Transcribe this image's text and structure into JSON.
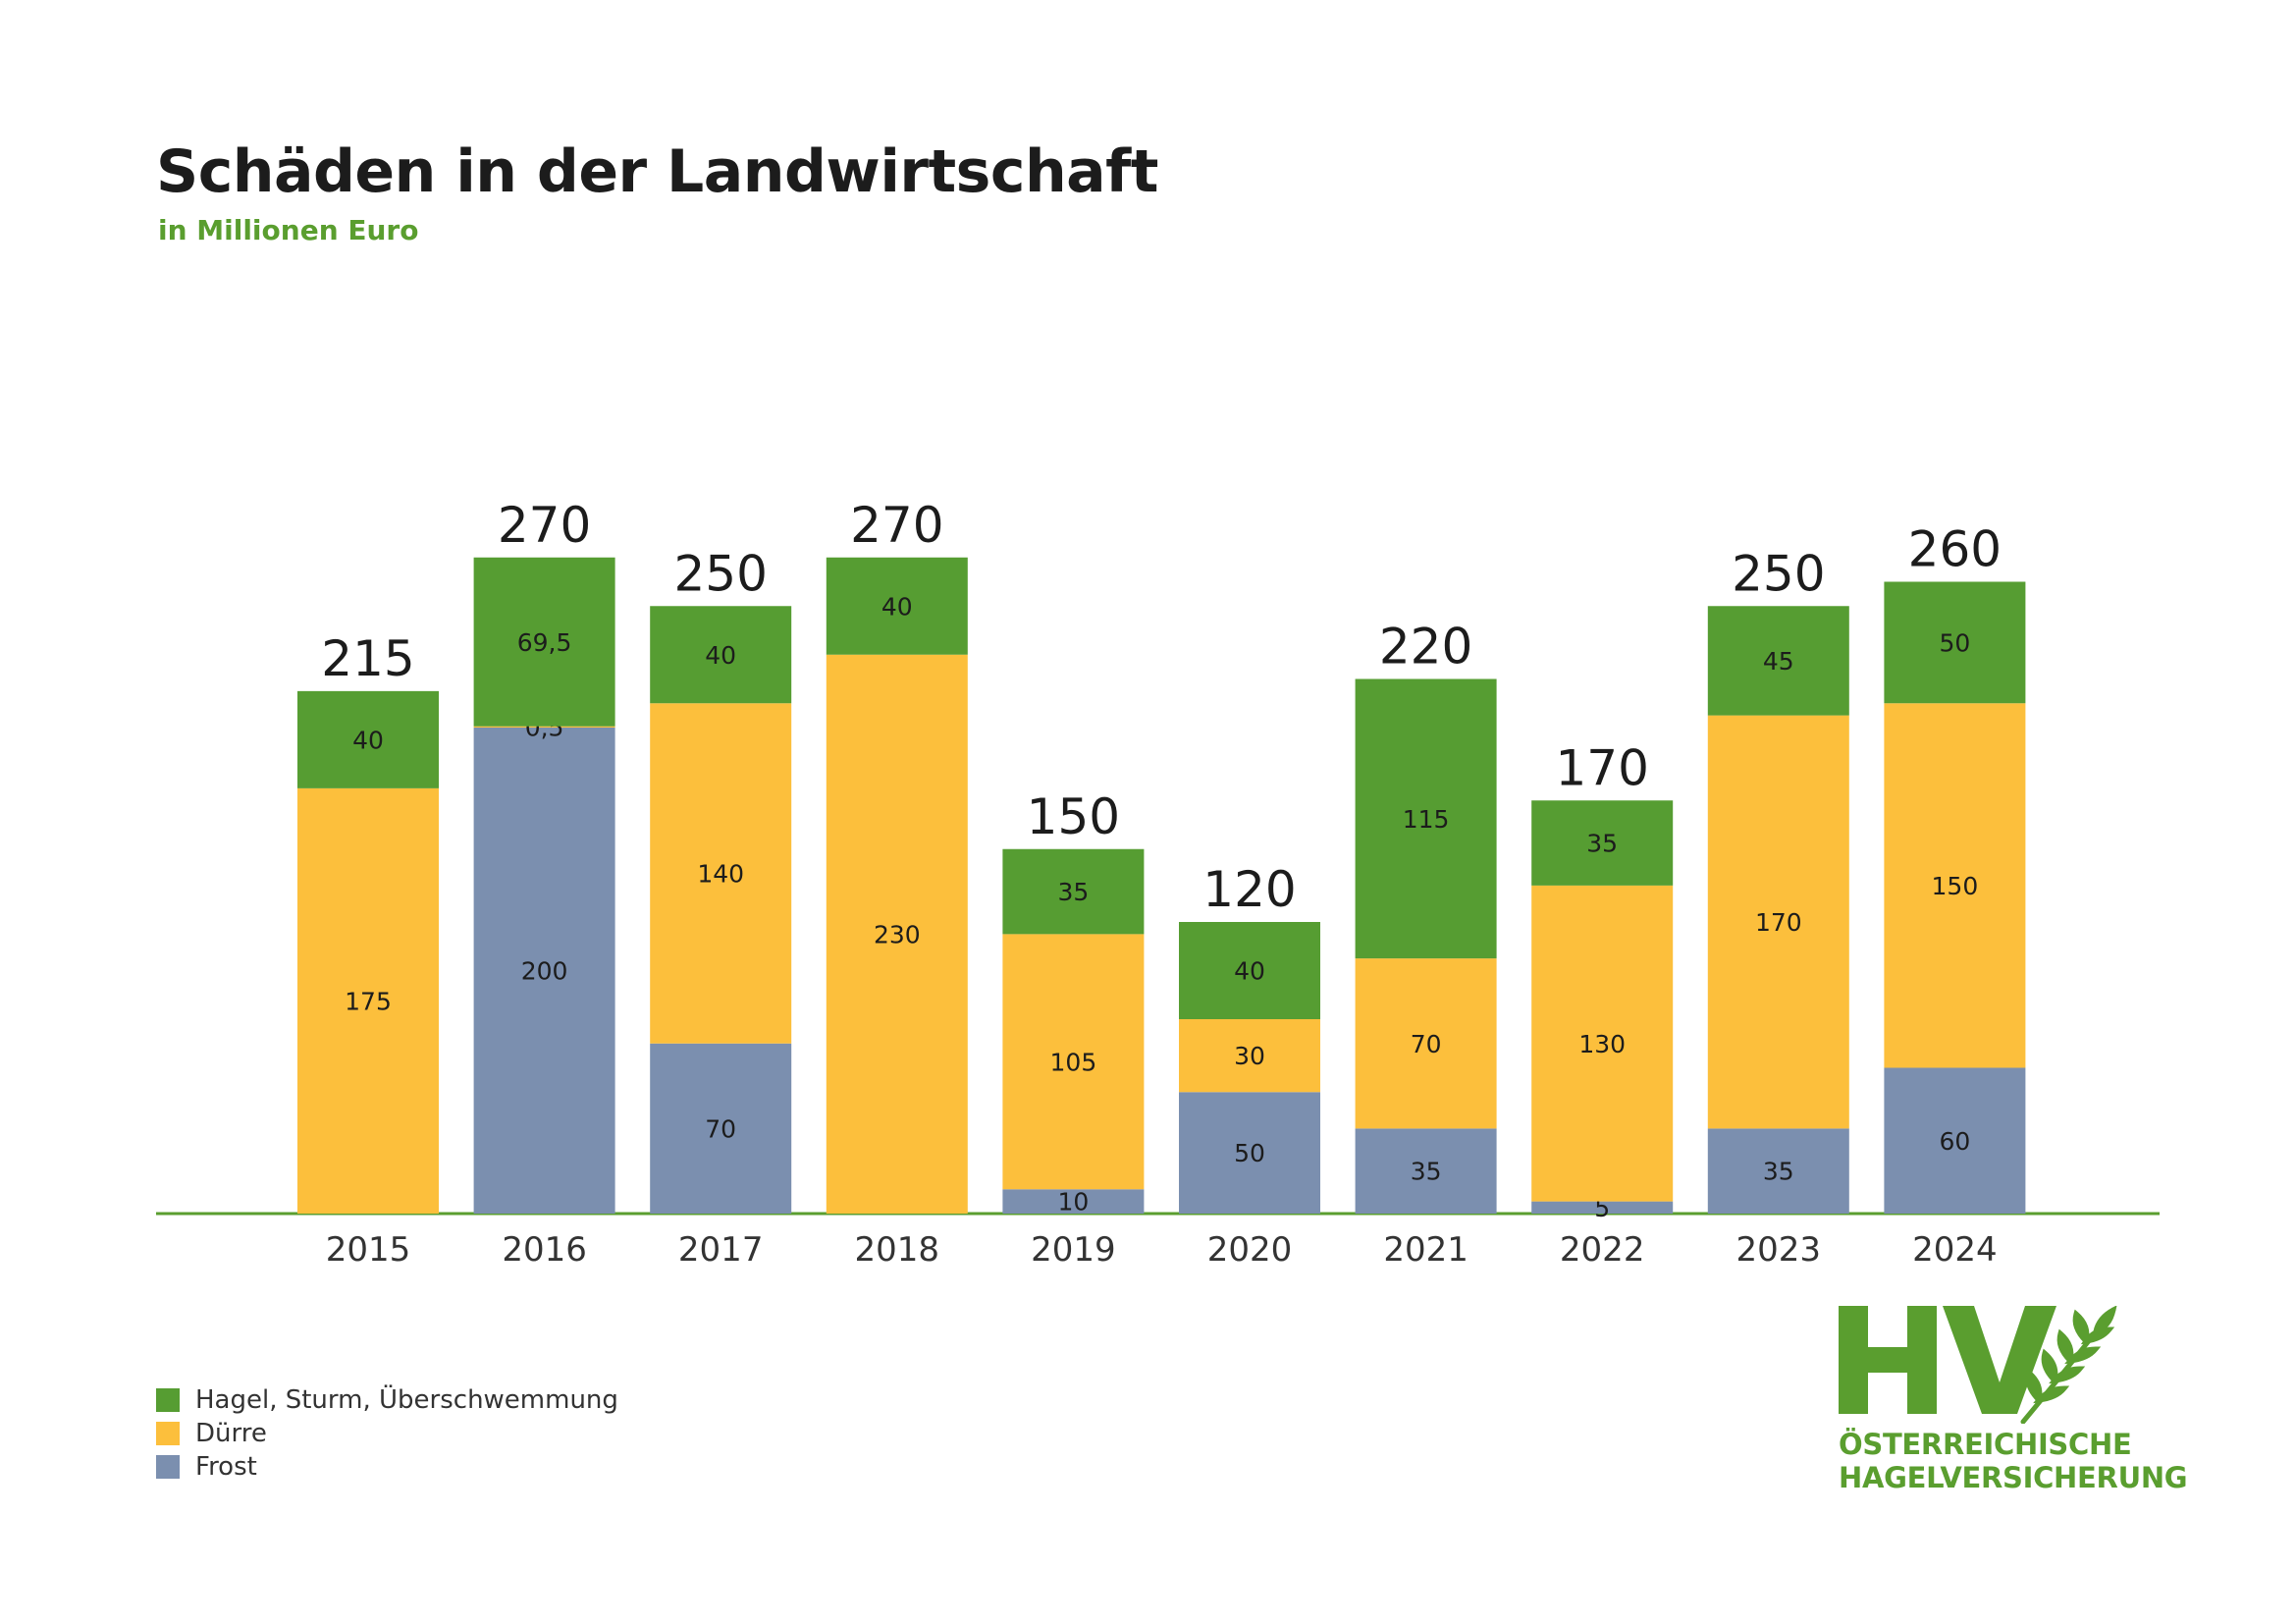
{
  "header": {
    "title": "Schäden in der Landwirtschaft",
    "subtitle": "in Millionen Euro"
  },
  "colors": {
    "hagel": "#569d32",
    "duerre": "#fcbf3c",
    "frost": "#7b8faf",
    "axis": "#5a9e2f",
    "text": "#1c1c1c"
  },
  "legend": {
    "items": [
      {
        "label": "Hagel, Sturm, Überschwemmung",
        "color": "#569d32"
      },
      {
        "label": "Dürre",
        "color": "#fcbf3c"
      },
      {
        "label": "Frost",
        "color": "#7b8faf"
      }
    ]
  },
  "logo": {
    "mark": "HV",
    "line1": "ÖSTERREICHISCHE",
    "line2": "HAGELVERSICHERUNG",
    "icon": "wheat-ear-icon"
  },
  "chart_data": {
    "type": "bar",
    "stacked": true,
    "title": "Schäden in der Landwirtschaft",
    "subtitle": "in Millionen Euro",
    "categories": [
      "2015",
      "2016",
      "2017",
      "2018",
      "2019",
      "2020",
      "2021",
      "2022",
      "2023",
      "2024"
    ],
    "series": [
      {
        "name": "Frost",
        "color": "#7b8faf",
        "values": [
          0,
          200,
          70,
          0,
          10,
          50,
          35,
          5,
          35,
          60
        ],
        "labels": [
          "",
          "200",
          "70",
          "",
          "10",
          "50",
          "35",
          "5",
          "35",
          "60"
        ]
      },
      {
        "name": "Dürre",
        "color": "#fcbf3c",
        "values": [
          175,
          0.5,
          140,
          230,
          105,
          30,
          70,
          130,
          170,
          150
        ],
        "labels": [
          "175",
          "0,5",
          "140",
          "230",
          "105",
          "30",
          "70",
          "130",
          "170",
          "150"
        ]
      },
      {
        "name": "Hagel, Sturm, Überschwemmung",
        "color": "#569d32",
        "values": [
          40,
          69.5,
          40,
          40,
          35,
          40,
          115,
          35,
          45,
          50
        ],
        "labels": [
          "40",
          "69,5",
          "40",
          "40",
          "35",
          "40",
          "115",
          "35",
          "45",
          "50"
        ]
      }
    ],
    "totals": [
      "215",
      "270",
      "250",
      "270",
      "150",
      "120",
      "220",
      "170",
      "250",
      "260"
    ],
    "ylim": [
      0,
      270
    ],
    "grid": false,
    "legend_position": "bottom-left"
  }
}
